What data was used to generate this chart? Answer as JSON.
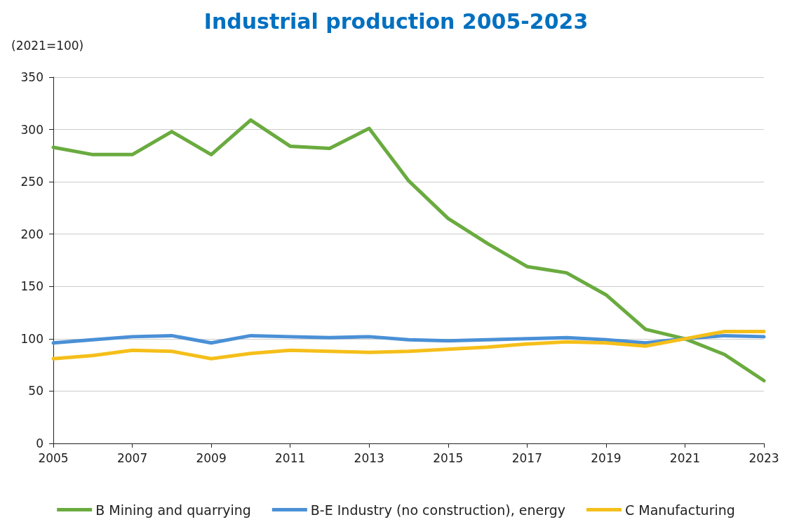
{
  "chart_data": {
    "type": "line",
    "title": "Industrial production 2005-2023",
    "ylabel": "(2021=100)",
    "x": [
      2005,
      2006,
      2007,
      2008,
      2009,
      2010,
      2011,
      2012,
      2013,
      2014,
      2015,
      2016,
      2017,
      2018,
      2019,
      2020,
      2021,
      2022,
      2023
    ],
    "xlim": [
      2005,
      2023
    ],
    "xticks": [
      2005,
      2007,
      2009,
      2011,
      2013,
      2015,
      2017,
      2019,
      2021,
      2023
    ],
    "ylim": [
      0,
      350
    ],
    "yticks": [
      0,
      50,
      100,
      150,
      200,
      250,
      300,
      350
    ],
    "grid": "y",
    "legend": "bottom",
    "marker": "none",
    "line_style": "solid",
    "series": [
      {
        "name": "B Mining and quarrying",
        "color": "#6aab3f",
        "values": [
          283,
          276,
          276,
          298,
          276,
          309,
          284,
          282,
          301,
          251,
          215,
          191,
          169,
          163,
          142,
          109,
          100,
          85,
          60
        ]
      },
      {
        "name": "B-E Industry (no construction), energy",
        "color": "#4a90d6",
        "values": [
          96,
          99,
          102,
          103,
          96,
          103,
          102,
          101,
          102,
          99,
          98,
          99,
          100,
          101,
          99,
          96,
          100,
          103,
          102
        ]
      },
      {
        "name": "C Manufacturing",
        "color": "#f5bf1a",
        "values": [
          81,
          84,
          89,
          88,
          81,
          86,
          89,
          88,
          87,
          88,
          90,
          92,
          95,
          97,
          96,
          93,
          100,
          107,
          107
        ]
      }
    ]
  }
}
